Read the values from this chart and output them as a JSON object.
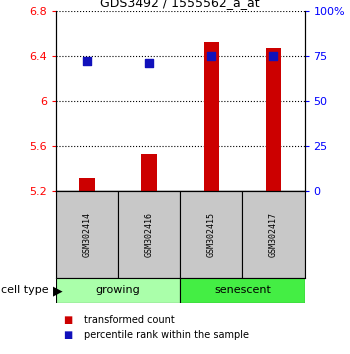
{
  "title": "GDS3492 / 1555562_a_at",
  "samples": [
    "GSM302414",
    "GSM302416",
    "GSM302415",
    "GSM302417"
  ],
  "bar_values": [
    5.32,
    5.53,
    6.52,
    6.47
  ],
  "dot_values": [
    72,
    71,
    75,
    75
  ],
  "ylim_left": [
    5.2,
    6.8
  ],
  "ylim_right": [
    0,
    100
  ],
  "yticks_left": [
    5.2,
    5.6,
    6.0,
    6.4,
    6.8
  ],
  "ytick_labels_left": [
    "5.2",
    "5.6",
    "6",
    "6.4",
    "6.8"
  ],
  "yticks_right": [
    0,
    25,
    50,
    75,
    100
  ],
  "ytick_labels_right": [
    "0",
    "25",
    "50",
    "75",
    "100%"
  ],
  "bar_color": "#CC0000",
  "dot_color": "#1111BB",
  "bar_width": 0.25,
  "sample_box_color": "#C8C8C8",
  "growing_color": "#AAFFAA",
  "senescent_color": "#44EE44",
  "legend_items": [
    "transformed count",
    "percentile rank within the sample"
  ],
  "growing_samples": [
    0,
    1
  ],
  "senescent_samples": [
    2,
    3
  ]
}
